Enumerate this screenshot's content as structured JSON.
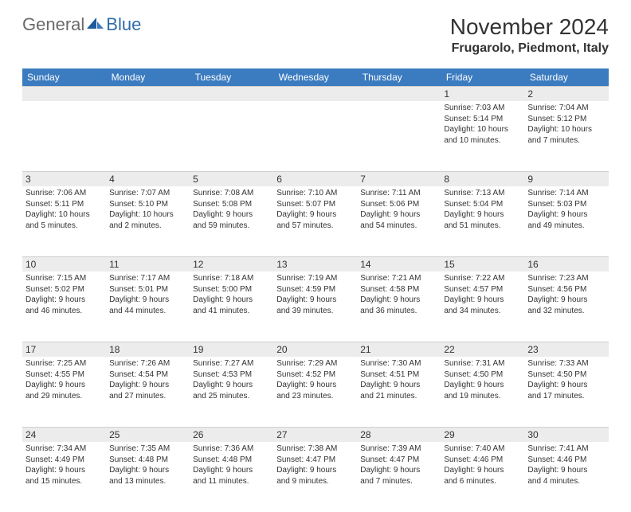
{
  "logo": {
    "text1": "General",
    "text2": "Blue"
  },
  "title": "November 2024",
  "location": "Frugarolo, Piedmont, Italy",
  "colors": {
    "header_bg": "#3b7bbf",
    "header_fg": "#ffffff",
    "daynum_bg": "#ececec",
    "text": "#333333",
    "logo_gray": "#6a6a6a",
    "logo_blue": "#2f6ba8",
    "grid_border": "#cfcfcf"
  },
  "weekdays": [
    "Sunday",
    "Monday",
    "Tuesday",
    "Wednesday",
    "Thursday",
    "Friday",
    "Saturday"
  ],
  "weeks": [
    [
      {},
      {},
      {},
      {},
      {},
      {
        "n": "1",
        "sr": "Sunrise: 7:03 AM",
        "ss": "Sunset: 5:14 PM",
        "d1": "Daylight: 10 hours",
        "d2": "and 10 minutes."
      },
      {
        "n": "2",
        "sr": "Sunrise: 7:04 AM",
        "ss": "Sunset: 5:12 PM",
        "d1": "Daylight: 10 hours",
        "d2": "and 7 minutes."
      }
    ],
    [
      {
        "n": "3",
        "sr": "Sunrise: 7:06 AM",
        "ss": "Sunset: 5:11 PM",
        "d1": "Daylight: 10 hours",
        "d2": "and 5 minutes."
      },
      {
        "n": "4",
        "sr": "Sunrise: 7:07 AM",
        "ss": "Sunset: 5:10 PM",
        "d1": "Daylight: 10 hours",
        "d2": "and 2 minutes."
      },
      {
        "n": "5",
        "sr": "Sunrise: 7:08 AM",
        "ss": "Sunset: 5:08 PM",
        "d1": "Daylight: 9 hours",
        "d2": "and 59 minutes."
      },
      {
        "n": "6",
        "sr": "Sunrise: 7:10 AM",
        "ss": "Sunset: 5:07 PM",
        "d1": "Daylight: 9 hours",
        "d2": "and 57 minutes."
      },
      {
        "n": "7",
        "sr": "Sunrise: 7:11 AM",
        "ss": "Sunset: 5:06 PM",
        "d1": "Daylight: 9 hours",
        "d2": "and 54 minutes."
      },
      {
        "n": "8",
        "sr": "Sunrise: 7:13 AM",
        "ss": "Sunset: 5:04 PM",
        "d1": "Daylight: 9 hours",
        "d2": "and 51 minutes."
      },
      {
        "n": "9",
        "sr": "Sunrise: 7:14 AM",
        "ss": "Sunset: 5:03 PM",
        "d1": "Daylight: 9 hours",
        "d2": "and 49 minutes."
      }
    ],
    [
      {
        "n": "10",
        "sr": "Sunrise: 7:15 AM",
        "ss": "Sunset: 5:02 PM",
        "d1": "Daylight: 9 hours",
        "d2": "and 46 minutes."
      },
      {
        "n": "11",
        "sr": "Sunrise: 7:17 AM",
        "ss": "Sunset: 5:01 PM",
        "d1": "Daylight: 9 hours",
        "d2": "and 44 minutes."
      },
      {
        "n": "12",
        "sr": "Sunrise: 7:18 AM",
        "ss": "Sunset: 5:00 PM",
        "d1": "Daylight: 9 hours",
        "d2": "and 41 minutes."
      },
      {
        "n": "13",
        "sr": "Sunrise: 7:19 AM",
        "ss": "Sunset: 4:59 PM",
        "d1": "Daylight: 9 hours",
        "d2": "and 39 minutes."
      },
      {
        "n": "14",
        "sr": "Sunrise: 7:21 AM",
        "ss": "Sunset: 4:58 PM",
        "d1": "Daylight: 9 hours",
        "d2": "and 36 minutes."
      },
      {
        "n": "15",
        "sr": "Sunrise: 7:22 AM",
        "ss": "Sunset: 4:57 PM",
        "d1": "Daylight: 9 hours",
        "d2": "and 34 minutes."
      },
      {
        "n": "16",
        "sr": "Sunrise: 7:23 AM",
        "ss": "Sunset: 4:56 PM",
        "d1": "Daylight: 9 hours",
        "d2": "and 32 minutes."
      }
    ],
    [
      {
        "n": "17",
        "sr": "Sunrise: 7:25 AM",
        "ss": "Sunset: 4:55 PM",
        "d1": "Daylight: 9 hours",
        "d2": "and 29 minutes."
      },
      {
        "n": "18",
        "sr": "Sunrise: 7:26 AM",
        "ss": "Sunset: 4:54 PM",
        "d1": "Daylight: 9 hours",
        "d2": "and 27 minutes."
      },
      {
        "n": "19",
        "sr": "Sunrise: 7:27 AM",
        "ss": "Sunset: 4:53 PM",
        "d1": "Daylight: 9 hours",
        "d2": "and 25 minutes."
      },
      {
        "n": "20",
        "sr": "Sunrise: 7:29 AM",
        "ss": "Sunset: 4:52 PM",
        "d1": "Daylight: 9 hours",
        "d2": "and 23 minutes."
      },
      {
        "n": "21",
        "sr": "Sunrise: 7:30 AM",
        "ss": "Sunset: 4:51 PM",
        "d1": "Daylight: 9 hours",
        "d2": "and 21 minutes."
      },
      {
        "n": "22",
        "sr": "Sunrise: 7:31 AM",
        "ss": "Sunset: 4:50 PM",
        "d1": "Daylight: 9 hours",
        "d2": "and 19 minutes."
      },
      {
        "n": "23",
        "sr": "Sunrise: 7:33 AM",
        "ss": "Sunset: 4:50 PM",
        "d1": "Daylight: 9 hours",
        "d2": "and 17 minutes."
      }
    ],
    [
      {
        "n": "24",
        "sr": "Sunrise: 7:34 AM",
        "ss": "Sunset: 4:49 PM",
        "d1": "Daylight: 9 hours",
        "d2": "and 15 minutes."
      },
      {
        "n": "25",
        "sr": "Sunrise: 7:35 AM",
        "ss": "Sunset: 4:48 PM",
        "d1": "Daylight: 9 hours",
        "d2": "and 13 minutes."
      },
      {
        "n": "26",
        "sr": "Sunrise: 7:36 AM",
        "ss": "Sunset: 4:48 PM",
        "d1": "Daylight: 9 hours",
        "d2": "and 11 minutes."
      },
      {
        "n": "27",
        "sr": "Sunrise: 7:38 AM",
        "ss": "Sunset: 4:47 PM",
        "d1": "Daylight: 9 hours",
        "d2": "and 9 minutes."
      },
      {
        "n": "28",
        "sr": "Sunrise: 7:39 AM",
        "ss": "Sunset: 4:47 PM",
        "d1": "Daylight: 9 hours",
        "d2": "and 7 minutes."
      },
      {
        "n": "29",
        "sr": "Sunrise: 7:40 AM",
        "ss": "Sunset: 4:46 PM",
        "d1": "Daylight: 9 hours",
        "d2": "and 6 minutes."
      },
      {
        "n": "30",
        "sr": "Sunrise: 7:41 AM",
        "ss": "Sunset: 4:46 PM",
        "d1": "Daylight: 9 hours",
        "d2": "and 4 minutes."
      }
    ]
  ]
}
